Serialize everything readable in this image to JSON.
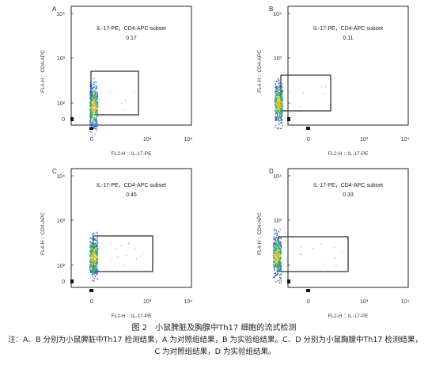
{
  "figure": {
    "title": "图 2　小鼠脾脏及胸腺中Th17 细胞的流式检测",
    "note": "注：A、B 分别为小鼠脾脏中Th17 检测结果，A 为对照组结果，B 为实验组结果。C、D 分别为小鼠胸腺中Th17 检测结果，C 为对照组结果，D 为实验组结果。"
  },
  "axes": {
    "xlabel": "FL2-H :: IL-17-PE",
    "ylabel": "FL4-H :: CD4-APC",
    "y_ticks": [
      "10⁴",
      "10³",
      "10²",
      "0"
    ],
    "x_ticks": [
      "0",
      "10³",
      "10⁴"
    ]
  },
  "colors": {
    "frame": "#222222",
    "gate": "#222222",
    "dots_low": "#2f5fbf",
    "dots_mid": "#3aa86b",
    "dots_high": "#c8c23a"
  },
  "chart_data": [
    {
      "type": "scatter",
      "panel": "A",
      "gate_label": "IL-17-PE，CD4-APC subset",
      "gate_value": "0.17",
      "gate_percent": 0.17
    },
    {
      "type": "scatter",
      "panel": "B",
      "gate_label": "IL-17-PE，CD4-APC subset",
      "gate_value": "0.11",
      "gate_percent": 0.11
    },
    {
      "type": "scatter",
      "panel": "C",
      "gate_label": "IL-17-PE，CD4-APC subset",
      "gate_value": "0.45",
      "gate_percent": 0.45
    },
    {
      "type": "scatter",
      "panel": "D",
      "gate_label": "IL-17-PE，CD4-APC subset",
      "gate_value": "0.33",
      "gate_percent": 0.33
    }
  ]
}
